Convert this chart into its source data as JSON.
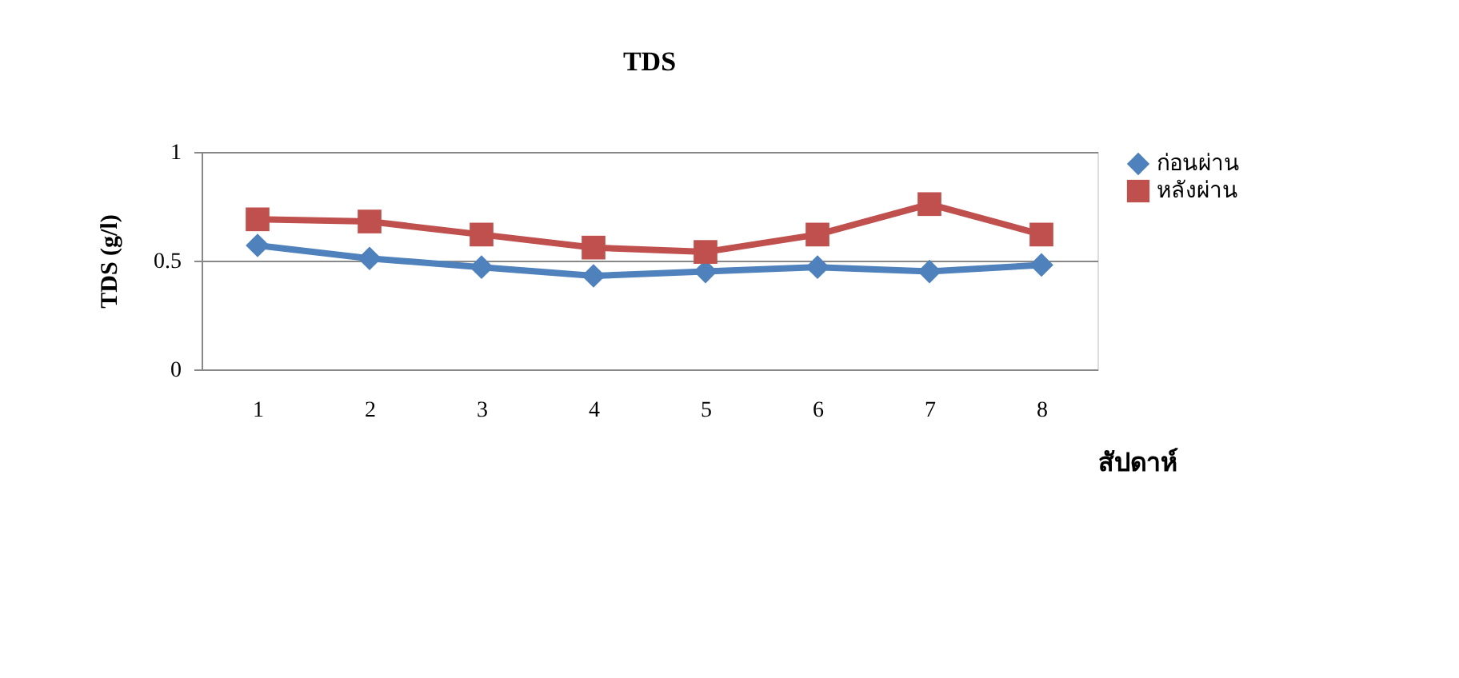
{
  "chart_data": {
    "type": "line",
    "title": "TDS",
    "xlabel": "สัปดาห์",
    "ylabel": "TDS (g/l)",
    "categories": [
      "1",
      "2",
      "3",
      "4",
      "5",
      "6",
      "7",
      "8"
    ],
    "series": [
      {
        "name": "ก่อนผ่าน",
        "color": "#4f81bd",
        "marker": "diamond",
        "values": [
          0.57,
          0.51,
          0.47,
          0.43,
          0.45,
          0.47,
          0.45,
          0.48
        ]
      },
      {
        "name": "หลังผ่าน",
        "color": "#c0504d",
        "marker": "square",
        "values": [
          0.69,
          0.68,
          0.62,
          0.56,
          0.54,
          0.62,
          0.76,
          0.62
        ]
      }
    ],
    "ylim": [
      0,
      1
    ],
    "yticks": [
      0,
      0.5,
      1
    ],
    "grid": "y",
    "legend": "right",
    "line_style": "solid"
  }
}
